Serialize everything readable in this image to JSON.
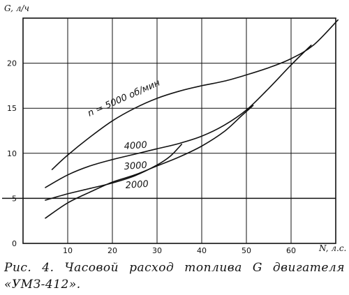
{
  "caption": "Рис. 4. Часовой расход топлива G двигателя «УМЗ-412».",
  "chart_data": {
    "type": "line",
    "ylabel": "G, л/ч",
    "xlabel": "N, л.с.",
    "xlim": [
      0,
      70
    ],
    "ylim": [
      0,
      25
    ],
    "x_ticks": [
      10,
      20,
      30,
      40,
      50,
      60
    ],
    "y_ticks": [
      0,
      5,
      10,
      15,
      20
    ],
    "grid": true,
    "series": [
      {
        "name": "n = 5000 об/мин",
        "x": [
          6.5,
          10,
          15,
          20,
          25,
          30,
          35,
          40,
          45,
          50,
          55,
          60,
          65,
          70.5
        ],
        "y": [
          8.2,
          9.8,
          11.8,
          13.6,
          15.0,
          16.1,
          16.9,
          17.5,
          18.0,
          18.7,
          19.5,
          20.5,
          22.0,
          24.8
        ]
      },
      {
        "name": "4000",
        "x": [
          5.0,
          10,
          15,
          20,
          25,
          30,
          35,
          40,
          45,
          50,
          55,
          60,
          64.5
        ],
        "y": [
          6.2,
          7.6,
          8.6,
          9.3,
          9.9,
          10.5,
          11.1,
          11.9,
          13.1,
          14.8,
          17.2,
          19.8,
          22.0
        ]
      },
      {
        "name": "3000",
        "x": [
          5.0,
          10,
          15,
          20,
          25,
          30,
          33,
          35.5
        ],
        "y": [
          4.8,
          5.5,
          6.1,
          6.7,
          7.5,
          8.7,
          9.7,
          11.0
        ]
      },
      {
        "name": "2000",
        "x": [
          5.0,
          10,
          15,
          20,
          25,
          30,
          35,
          40,
          45,
          49,
          51.5
        ],
        "y": [
          2.8,
          4.5,
          5.7,
          6.8,
          7.6,
          8.6,
          9.6,
          10.8,
          12.4,
          14.2,
          15.3
        ]
      }
    ]
  }
}
